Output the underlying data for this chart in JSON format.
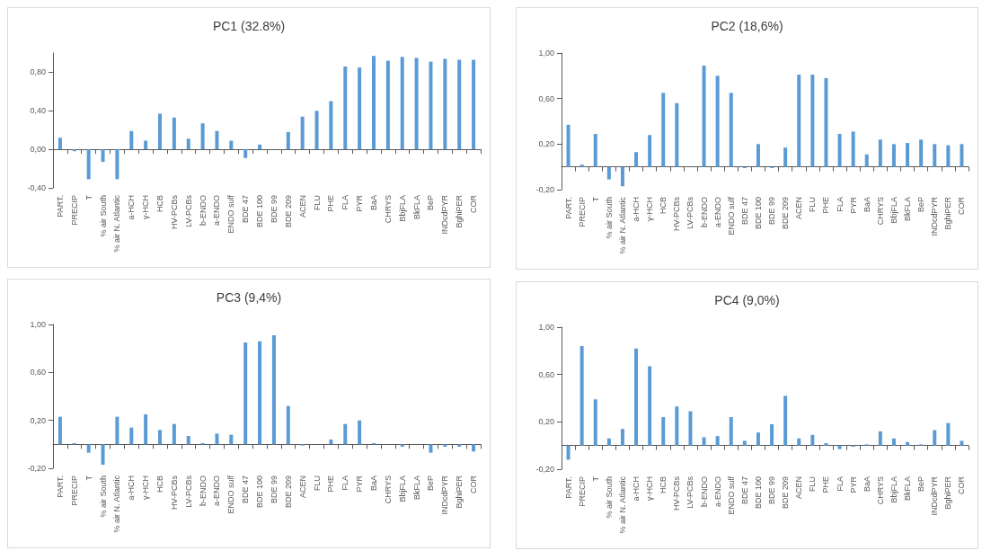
{
  "chart_data": [
    {
      "type": "bar",
      "title": "PC1 (32.8%)",
      "categories": [
        "PART.",
        "PRECIP",
        "T",
        "% air South",
        "% air N. Atlantic",
        "a-HCH",
        "γ-HCH",
        "HCB",
        "HV-PCBs",
        "LV-PCBs",
        "b-ENDO",
        "a-ENDO",
        "ENDO sulf",
        "BDE 47",
        "BDE 100",
        "BDE 99",
        "BDE 209",
        "ACEN",
        "FLU",
        "PHE",
        "FLA",
        "PYR",
        "BaA",
        "CHRYS",
        "BbjFLA",
        "BkFLA",
        "BeP",
        "INDcdPYR",
        "BghiPER",
        "COR"
      ],
      "color": "#5b9bd5",
      "ylim": [
        -0.4,
        1.0
      ],
      "yticks": [
        {
          "value": -0.4,
          "label": "-0,40"
        },
        {
          "value": 0,
          "label": "0,00"
        },
        {
          "value": 0.4,
          "label": "0,40"
        },
        {
          "value": 0.8,
          "label": "0,80"
        }
      ],
      "values": [
        0.12,
        -0.02,
        -0.31,
        -0.13,
        -0.31,
        0.19,
        0.09,
        0.37,
        0.33,
        0.11,
        0.27,
        0.19,
        0.09,
        -0.09,
        0.05,
        0,
        0.18,
        0.34,
        0.4,
        0.5,
        0.86,
        0.85,
        0.97,
        0.92,
        0.96,
        0.95,
        0.91,
        0.94,
        0.93,
        0.93
      ]
    },
    {
      "type": "bar",
      "title": "PC2 (18,6%)",
      "categories": [
        "PART.",
        "PRECIP",
        "T",
        "% air South",
        "% air N. Atlantic",
        "a-HCH",
        "γ-HCH",
        "HCB",
        "HV-PCBs",
        "LV-PCBs",
        "b-ENDO",
        "a-ENDO",
        "ENDO sulf",
        "BDE 47",
        "BDE 100",
        "BDE 99",
        "BDE 209",
        "ACEN",
        "FLU",
        "PHE",
        "FLA",
        "PYR",
        "BaA",
        "CHRYS",
        "BbjFLA",
        "BkFLA",
        "BeP",
        "INDcdPYR",
        "BghiPER",
        "COR"
      ],
      "color": "#5b9bd5",
      "grid": false,
      "ylim": [
        -0.2,
        1.0
      ],
      "yticks": [
        {
          "value": -0.2,
          "label": "-0,20"
        },
        {
          "value": 0.2,
          "label": "0,20"
        },
        {
          "value": 0.6,
          "label": "0,60"
        },
        {
          "value": 1.0,
          "label": "1,00"
        }
      ],
      "values": [
        0.37,
        0.02,
        0.29,
        -0.11,
        -0.17,
        0.13,
        0.28,
        0.65,
        0.56,
        0,
        0.89,
        0.8,
        0.65,
        -0.01,
        0.2,
        -0.01,
        0.17,
        0.81,
        0.81,
        0.78,
        0.29,
        0.31,
        0.11,
        0.24,
        0.2,
        0.21,
        0.24,
        0.2,
        0.19,
        0.2
      ]
    },
    {
      "type": "bar",
      "title": "PC3 (9,4%)",
      "categories": [
        "PART.",
        "PRECIP",
        "T",
        "% air South",
        "% air N. Atlantic",
        "a-HCH",
        "γ-HCH",
        "HCB",
        "HV-PCBs",
        "LV-PCBs",
        "b-ENDO",
        "a-ENDO",
        "ENDO sulf",
        "BDE 47",
        "BDE 100",
        "BDE 99",
        "BDE 209",
        "ACEN",
        "FLU",
        "PHE",
        "FLA",
        "PYR",
        "BaA",
        "CHRYS",
        "BbjFLA",
        "BkFLA",
        "BeP",
        "INDcdPYR",
        "BghiPER",
        "COR"
      ],
      "color": "#5b9bd5",
      "grid": false,
      "ylim": [
        -0.2,
        1.0
      ],
      "yticks": [
        {
          "value": -0.2,
          "label": "-0,20"
        },
        {
          "value": 0.2,
          "label": "0,20"
        },
        {
          "value": 0.6,
          "label": "0,60"
        },
        {
          "value": 1.0,
          "label": "1,00"
        }
      ],
      "values": [
        0.23,
        0.01,
        -0.07,
        -0.17,
        0.23,
        0.14,
        0.25,
        0.12,
        0.17,
        0.07,
        0.01,
        0.09,
        0.08,
        0.85,
        0.86,
        0.91,
        0.32,
        -0.01,
        0,
        0.04,
        0.17,
        0.2,
        0.01,
        0,
        -0.02,
        0,
        -0.07,
        -0.02,
        -0.02,
        -0.06
      ]
    },
    {
      "type": "bar",
      "title": "PC4 (9,0%)",
      "categories": [
        "PART.",
        "PRECIP",
        "T",
        "% air South",
        "% air N. Atlantic",
        "a-HCH",
        "γ-HCH",
        "HCB",
        "HV-PCBs",
        "LV-PCBs",
        "b-ENDO",
        "a-ENDO",
        "ENDO sulf",
        "BDE 47",
        "BDE 100",
        "BDE 99",
        "BDE 209",
        "ACEN",
        "FLU",
        "PHE",
        "FLA",
        "PYR",
        "BaA",
        "CHRYS",
        "BbjFLA",
        "BkFLA",
        "BeP",
        "INDcdPYR",
        "BghiPER",
        "COR"
      ],
      "color": "#5b9bd5",
      "grid": false,
      "ylim": [
        -0.2,
        1.0
      ],
      "yticks": [
        {
          "value": -0.2,
          "label": "-0,20"
        },
        {
          "value": 0.2,
          "label": "0,20"
        },
        {
          "value": 0.6,
          "label": "0,60"
        },
        {
          "value": 1.0,
          "label": "1,00"
        }
      ],
      "values": [
        -0.12,
        0.84,
        0.39,
        0.06,
        0.14,
        0.82,
        0.67,
        0.24,
        0.33,
        0.29,
        0.07,
        0.08,
        0.24,
        0.04,
        0.11,
        0.18,
        0.42,
        0.06,
        0.09,
        0.02,
        -0.03,
        -0.01,
        0.01,
        0.12,
        0.06,
        0.03,
        0.01,
        0.13,
        0.19,
        0.04
      ]
    }
  ]
}
